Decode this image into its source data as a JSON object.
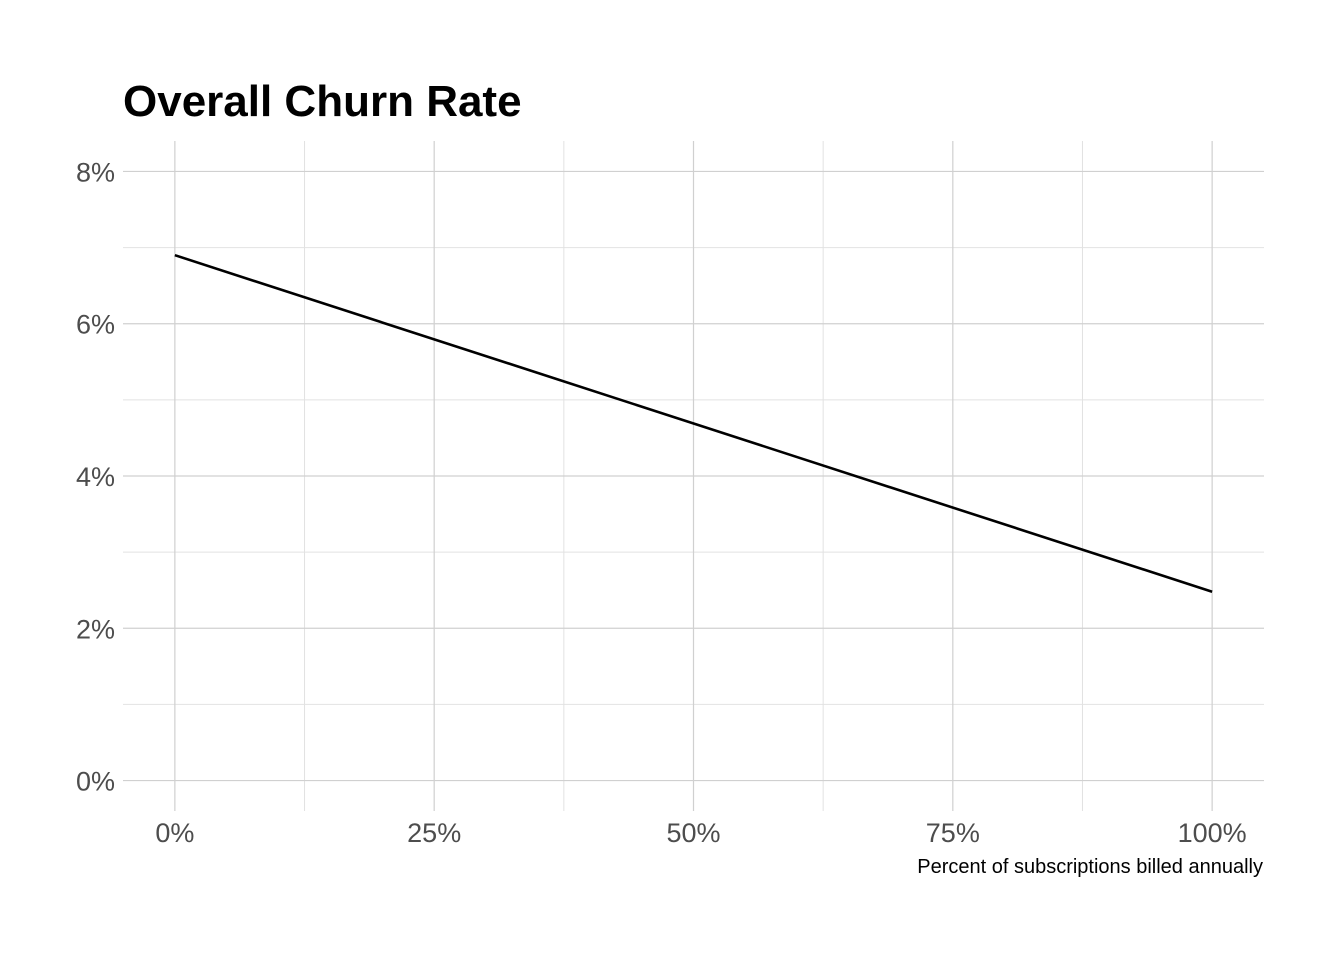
{
  "chart_data": {
    "type": "line",
    "title": "Overall Churn Rate",
    "xlabel": "Percent of subscriptions billed annually",
    "ylabel": "",
    "xlim": [
      -0.05,
      1.05
    ],
    "ylim": [
      -0.004,
      0.084
    ],
    "x_ticks": [
      0,
      0.25,
      0.5,
      0.75,
      1.0
    ],
    "x_tick_labels": [
      "0%",
      "25%",
      "50%",
      "75%",
      "100%"
    ],
    "y_ticks": [
      0,
      0.02,
      0.04,
      0.06,
      0.08
    ],
    "y_tick_labels": [
      "0%",
      "2%",
      "4%",
      "6%",
      "8%"
    ],
    "grid": true,
    "legend": "none",
    "series": [
      {
        "x": [
          0,
          1.0
        ],
        "y": [
          0.069,
          0.0248
        ],
        "color": "#000000"
      }
    ]
  }
}
